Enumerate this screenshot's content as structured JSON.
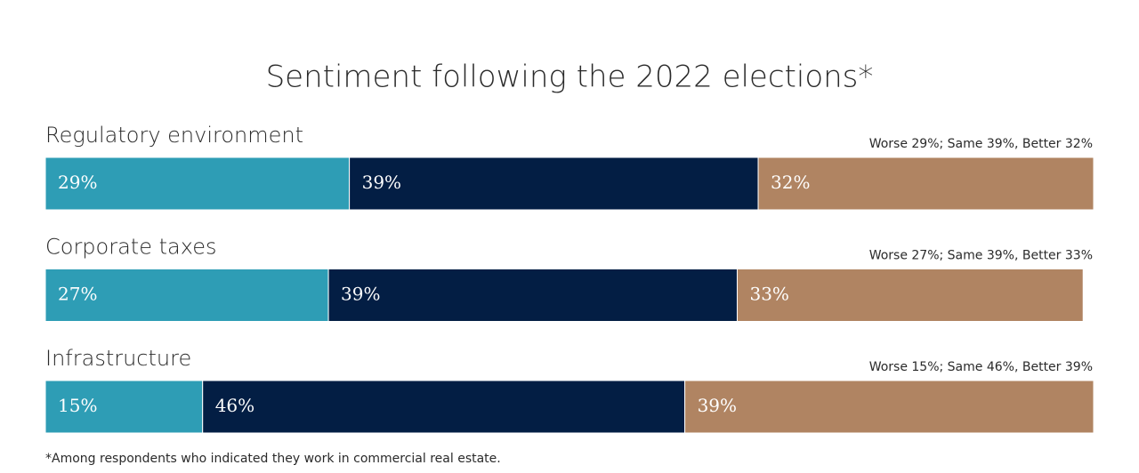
{
  "chart_data": {
    "type": "bar",
    "orientation": "horizontal",
    "stacked": true,
    "title": "Sentiment following the 2022 elections*",
    "categories": [
      "Regulatory environment",
      "Corporate taxes",
      "Infrastructure"
    ],
    "summaries": [
      "Worse 29%; Same 39%, Better 32%",
      "Worse 27%; Same 39%, Better 33%",
      "Worse 15%; Same 46%, Better 39%"
    ],
    "series": [
      {
        "color": "#2e9db5",
        "values": [
          29,
          27,
          15
        ],
        "value_labels": [
          "29%",
          "27%",
          "15%"
        ]
      },
      {
        "color": "#031e44",
        "values": [
          39,
          39,
          46
        ],
        "value_labels": [
          "39%",
          "39%",
          "46%"
        ]
      },
      {
        "color": "#b08462",
        "values": [
          32,
          33,
          39
        ],
        "value_labels": [
          "32%",
          "33%",
          "39%"
        ]
      }
    ],
    "xlim": [
      0,
      100
    ],
    "footnote": "*Among respondents who indicated they work in commercial real estate."
  }
}
